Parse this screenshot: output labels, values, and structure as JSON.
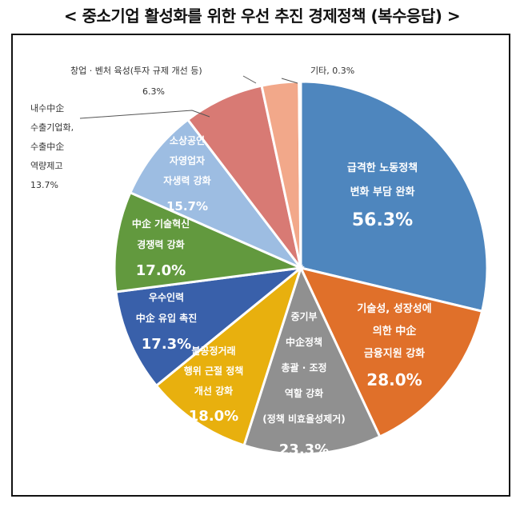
{
  "title": "< 중소기업 활성화를 위한 우선 추진 경제정책 (복수응답) >",
  "chart_data": {
    "type": "pie",
    "slices": [
      {
        "label_lines": [
          "급격한 노동정책",
          "변화 부담 완화"
        ],
        "value": 56.3,
        "value_label": "56.3%",
        "color": "#4e86be"
      },
      {
        "label_lines": [
          "기술성, 성장성에",
          "의한 中企",
          "금융지원 강화"
        ],
        "value": 28.0,
        "value_label": "28.0%",
        "color": "#e0702a"
      },
      {
        "label_lines": [
          "중기부",
          "中企정책",
          "총괄 · 조정",
          "역할 강화",
          "(정책 비효율성제거)"
        ],
        "value": 23.3,
        "value_label": "23.3%",
        "color": "#909090"
      },
      {
        "label_lines": [
          "불공정거래",
          "행위 근절 정책",
          "개선 강화"
        ],
        "value": 18.0,
        "value_label": "18.0%",
        "color": "#e8b00e"
      },
      {
        "label_lines": [
          "우수인력",
          "中企 유입 촉진"
        ],
        "value": 17.3,
        "value_label": "17.3%",
        "color": "#3960aa"
      },
      {
        "label_lines": [
          "中企 기술혁신",
          "경쟁력 강화"
        ],
        "value": 17.0,
        "value_label": "17.0%",
        "color": "#62993e"
      },
      {
        "label_lines": [
          "소상공인",
          "자영업자",
          "자생력 강화"
        ],
        "value": 15.7,
        "value_label": "15.7%",
        "color": "#9dbde2"
      },
      {
        "label_lines": [
          "내수中企",
          "수출기업화,",
          "수출中企",
          "역량제고"
        ],
        "value": 13.7,
        "value_label": "13.7%",
        "color": "#d87a74"
      },
      {
        "label_lines": [
          "창업 · 벤처 육성(투자 규제 개선 등)"
        ],
        "value": 6.3,
        "value_label": "6.3%",
        "color": "#f2a88a"
      },
      {
        "label_lines": [
          "기타"
        ],
        "value": 0.3,
        "value_label": "기타, 0.3%",
        "color": "#bbbbbb"
      }
    ]
  }
}
